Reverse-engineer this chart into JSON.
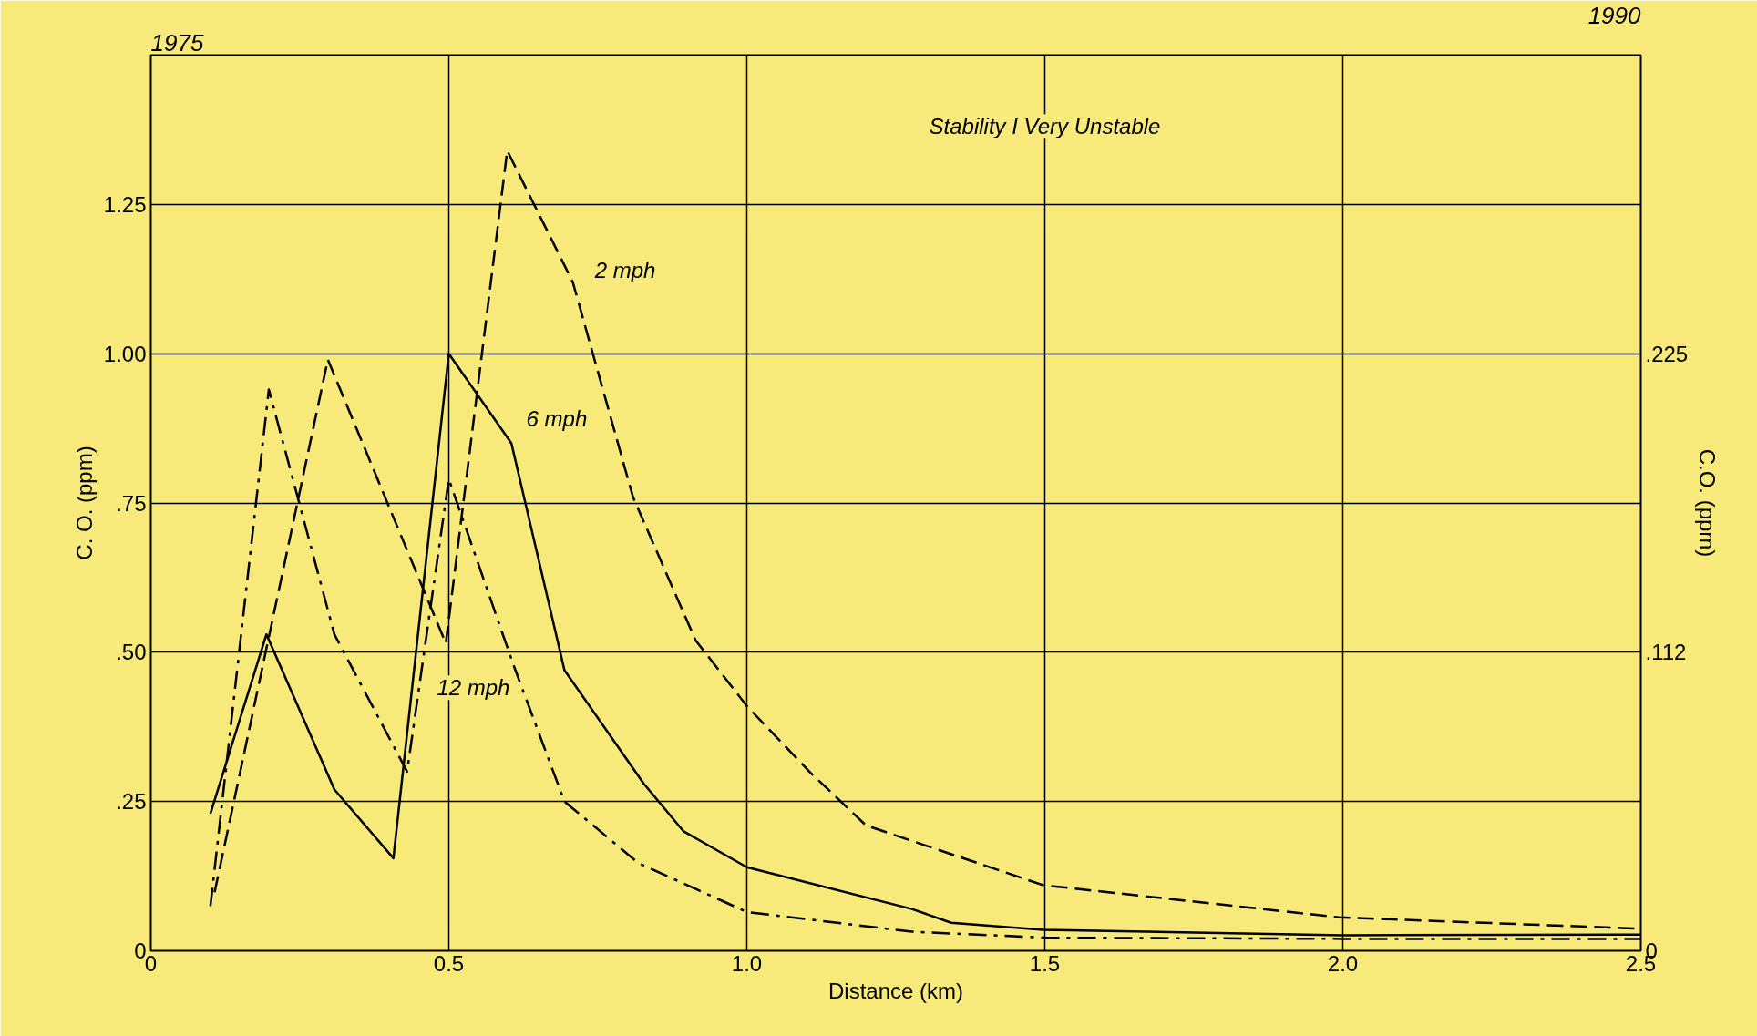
{
  "chart_data": {
    "type": "line",
    "xlabel": "Distance (km)",
    "ylabel": "C. O. (ppm)",
    "y2label": "C.O. (ppm)",
    "annotations": [
      "1975",
      "1990",
      "Stability I Very Unstable"
    ],
    "xlim": [
      0,
      2.5
    ],
    "xticks": [
      0,
      0.5,
      {
        "value": 1,
        "label": "1.0"
      },
      1.5,
      {
        "value": 2,
        "label": "2.0"
      },
      2.5
    ],
    "ylim": [
      0,
      1.5
    ],
    "yticks": [
      0,
      {
        "value": 0.25,
        "label": ".25"
      },
      {
        "value": 0.5,
        "label": ".50"
      },
      {
        "value": 0.75,
        "label": ".75"
      },
      {
        "value": 1,
        "label": "1.00"
      },
      1.25
    ],
    "y2lim": [
      0,
      0.3375
    ],
    "y2ticks": [
      0,
      {
        "value": 0.1125,
        "label": ".112"
      },
      {
        "value": 0.225,
        "label": ".225"
      }
    ],
    "grid": true,
    "legend": false,
    "marker": "none",
    "series": [
      {
        "name": "2 mph",
        "color": "#000000",
        "line_style": "dashed",
        "x": [
          0.107,
          0.297,
          0.495,
          0.598,
          0.708,
          0.809,
          0.914,
          1.0,
          1.105,
          1.2,
          1.497,
          1.994,
          2.5
        ],
        "values": [
          0.098,
          0.99,
          0.515,
          1.34,
          1.12,
          0.76,
          0.52,
          0.41,
          0.3,
          0.21,
          0.11,
          0.056,
          0.037
        ]
      },
      {
        "name": "6 mph",
        "color": "#000000",
        "line_style": "solid",
        "x": [
          0.1,
          0.194,
          0.308,
          0.407,
          0.5,
          0.605,
          0.694,
          0.827,
          0.894,
          1.0,
          1.277,
          1.343,
          1.497,
          2.0,
          2.5
        ],
        "values": [
          0.23,
          0.53,
          0.27,
          0.155,
          1.0,
          0.85,
          0.47,
          0.28,
          0.2,
          0.14,
          0.07,
          0.047,
          0.035,
          0.026,
          0.027
        ]
      },
      {
        "name": "12 mph",
        "color": "#000000",
        "line_style": "dashdot",
        "x": [
          0.1,
          0.198,
          0.308,
          0.43,
          0.5,
          0.608,
          0.694,
          0.818,
          1.0,
          1.277,
          1.5,
          2.0,
          2.5
        ],
        "values": [
          0.075,
          0.94,
          0.53,
          0.3,
          0.79,
          0.48,
          0.25,
          0.147,
          0.065,
          0.032,
          0.022,
          0.02,
          0.02
        ]
      }
    ]
  }
}
